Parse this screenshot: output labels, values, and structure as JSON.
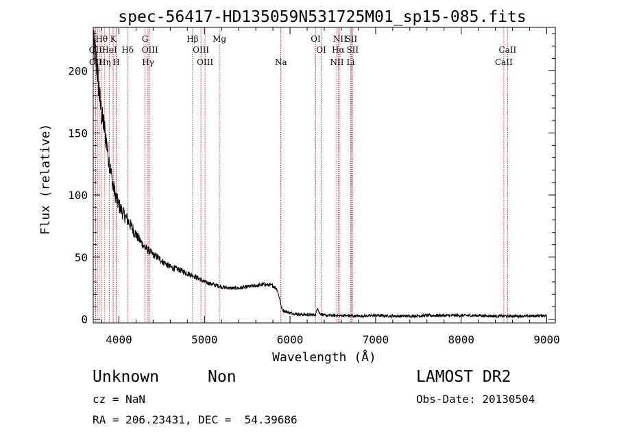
{
  "chart_data": {
    "type": "line",
    "title": "spec-56417-HD135059N531725M01_sp15-085.fits",
    "xlabel": "Wavelength (Å)",
    "ylabel": "Flux (relative)",
    "xlim": [
      3700,
      9100
    ],
    "ylim": [
      -3,
      235
    ],
    "xticks": [
      4000,
      5000,
      6000,
      7000,
      8000,
      9000
    ],
    "yticks": [
      0,
      50,
      100,
      150,
      200
    ],
    "grid": false,
    "line_color": "#000000",
    "marker_color": "#cc0000",
    "series": [
      {
        "x": [
          3700,
          3720,
          3740,
          3760,
          3780,
          3800,
          3820,
          3840,
          3860,
          3880,
          3900,
          3920,
          3940,
          3960,
          3980,
          4000,
          4050,
          4100,
          4150,
          4200,
          4250,
          4300,
          4350,
          4400,
          4450,
          4500,
          4600,
          4700,
          4800,
          4900,
          5000,
          5100,
          5200,
          5300,
          5400,
          5500,
          5600,
          5700,
          5800,
          5850,
          5880,
          5900,
          5920,
          6000,
          6100,
          6200,
          6300,
          6320,
          6340,
          6400,
          6500,
          6600,
          6800,
          7000,
          7200,
          7400,
          7600,
          7800,
          8000,
          8200,
          8400,
          8600,
          8800,
          9000
        ],
        "y": [
          220,
          215,
          205,
          190,
          175,
          162,
          158,
          150,
          140,
          130,
          122,
          112,
          105,
          100,
          95,
          92,
          85,
          80,
          74,
          68,
          63,
          58,
          55,
          52,
          50,
          47,
          42,
          40,
          37,
          34,
          30,
          28,
          26,
          25,
          25,
          26,
          27,
          28,
          27,
          24,
          16,
          9,
          7,
          5,
          4,
          3.5,
          3.5,
          10,
          5,
          3,
          3,
          3,
          2.5,
          3,
          2.5,
          2.5,
          3,
          3,
          3,
          3,
          2.5,
          2.5,
          2.5,
          3
        ]
      }
    ],
    "line_markers": [
      {
        "label": "OII",
        "x": 3727,
        "row": 2
      },
      {
        "label": "OII",
        "x": 3729,
        "row": 3
      },
      {
        "label": "Hθ",
        "x": 3798,
        "row": 1
      },
      {
        "label": "HeI",
        "x": 3889,
        "row": 2
      },
      {
        "label": "Hη",
        "x": 3835,
        "row": 3
      },
      {
        "label": "K",
        "x": 3934,
        "row": 1
      },
      {
        "label": "H",
        "x": 3969,
        "row": 3
      },
      {
        "label": "Hδ",
        "x": 4102,
        "row": 2
      },
      {
        "label": "G",
        "x": 4305,
        "row": 1
      },
      {
        "label": "OIII",
        "x": 4363,
        "row": 2
      },
      {
        "label": "Hγ",
        "x": 4341,
        "row": 3
      },
      {
        "label": "Hβ",
        "x": 4861,
        "row": 1
      },
      {
        "label": "OIII",
        "x": 4959,
        "row": 2
      },
      {
        "label": "OIII",
        "x": 5007,
        "row": 3
      },
      {
        "label": "Mg",
        "x": 5175,
        "row": 1
      },
      {
        "label": "Na",
        "x": 5894,
        "row": 3
      },
      {
        "label": "OI",
        "x": 6300,
        "row": 1
      },
      {
        "label": "OI",
        "x": 6364,
        "row": 2
      },
      {
        "label": "NII",
        "x": 6548,
        "row": 3
      },
      {
        "label": "NII",
        "x": 6583,
        "row": 1
      },
      {
        "label": "Hα",
        "x": 6563,
        "row": 2
      },
      {
        "label": "SII",
        "x": 6716,
        "row": 1
      },
      {
        "label": "SII",
        "x": 6731,
        "row": 2
      },
      {
        "label": "Li",
        "x": 6708,
        "row": 3
      },
      {
        "label": "CaII",
        "x": 8542,
        "row": 2
      },
      {
        "label": "CaII",
        "x": 8498,
        "row": 3
      }
    ],
    "extra_marker_lines": [
      3750,
      3771,
      3889,
      3933,
      3968,
      4102,
      4340,
      4861,
      4959,
      5007,
      5175,
      5892,
      6300,
      6364,
      6548,
      6563,
      6583,
      6716,
      6731,
      8498,
      8542
    ]
  },
  "info": {
    "object_type": "Unknown",
    "subclass": "Non",
    "survey": "LAMOST DR2",
    "cz": "cz = NaN",
    "obs_date": "Obs-Date: 20130504",
    "coords": "RA = 206.23431, DEC =  54.39686"
  }
}
